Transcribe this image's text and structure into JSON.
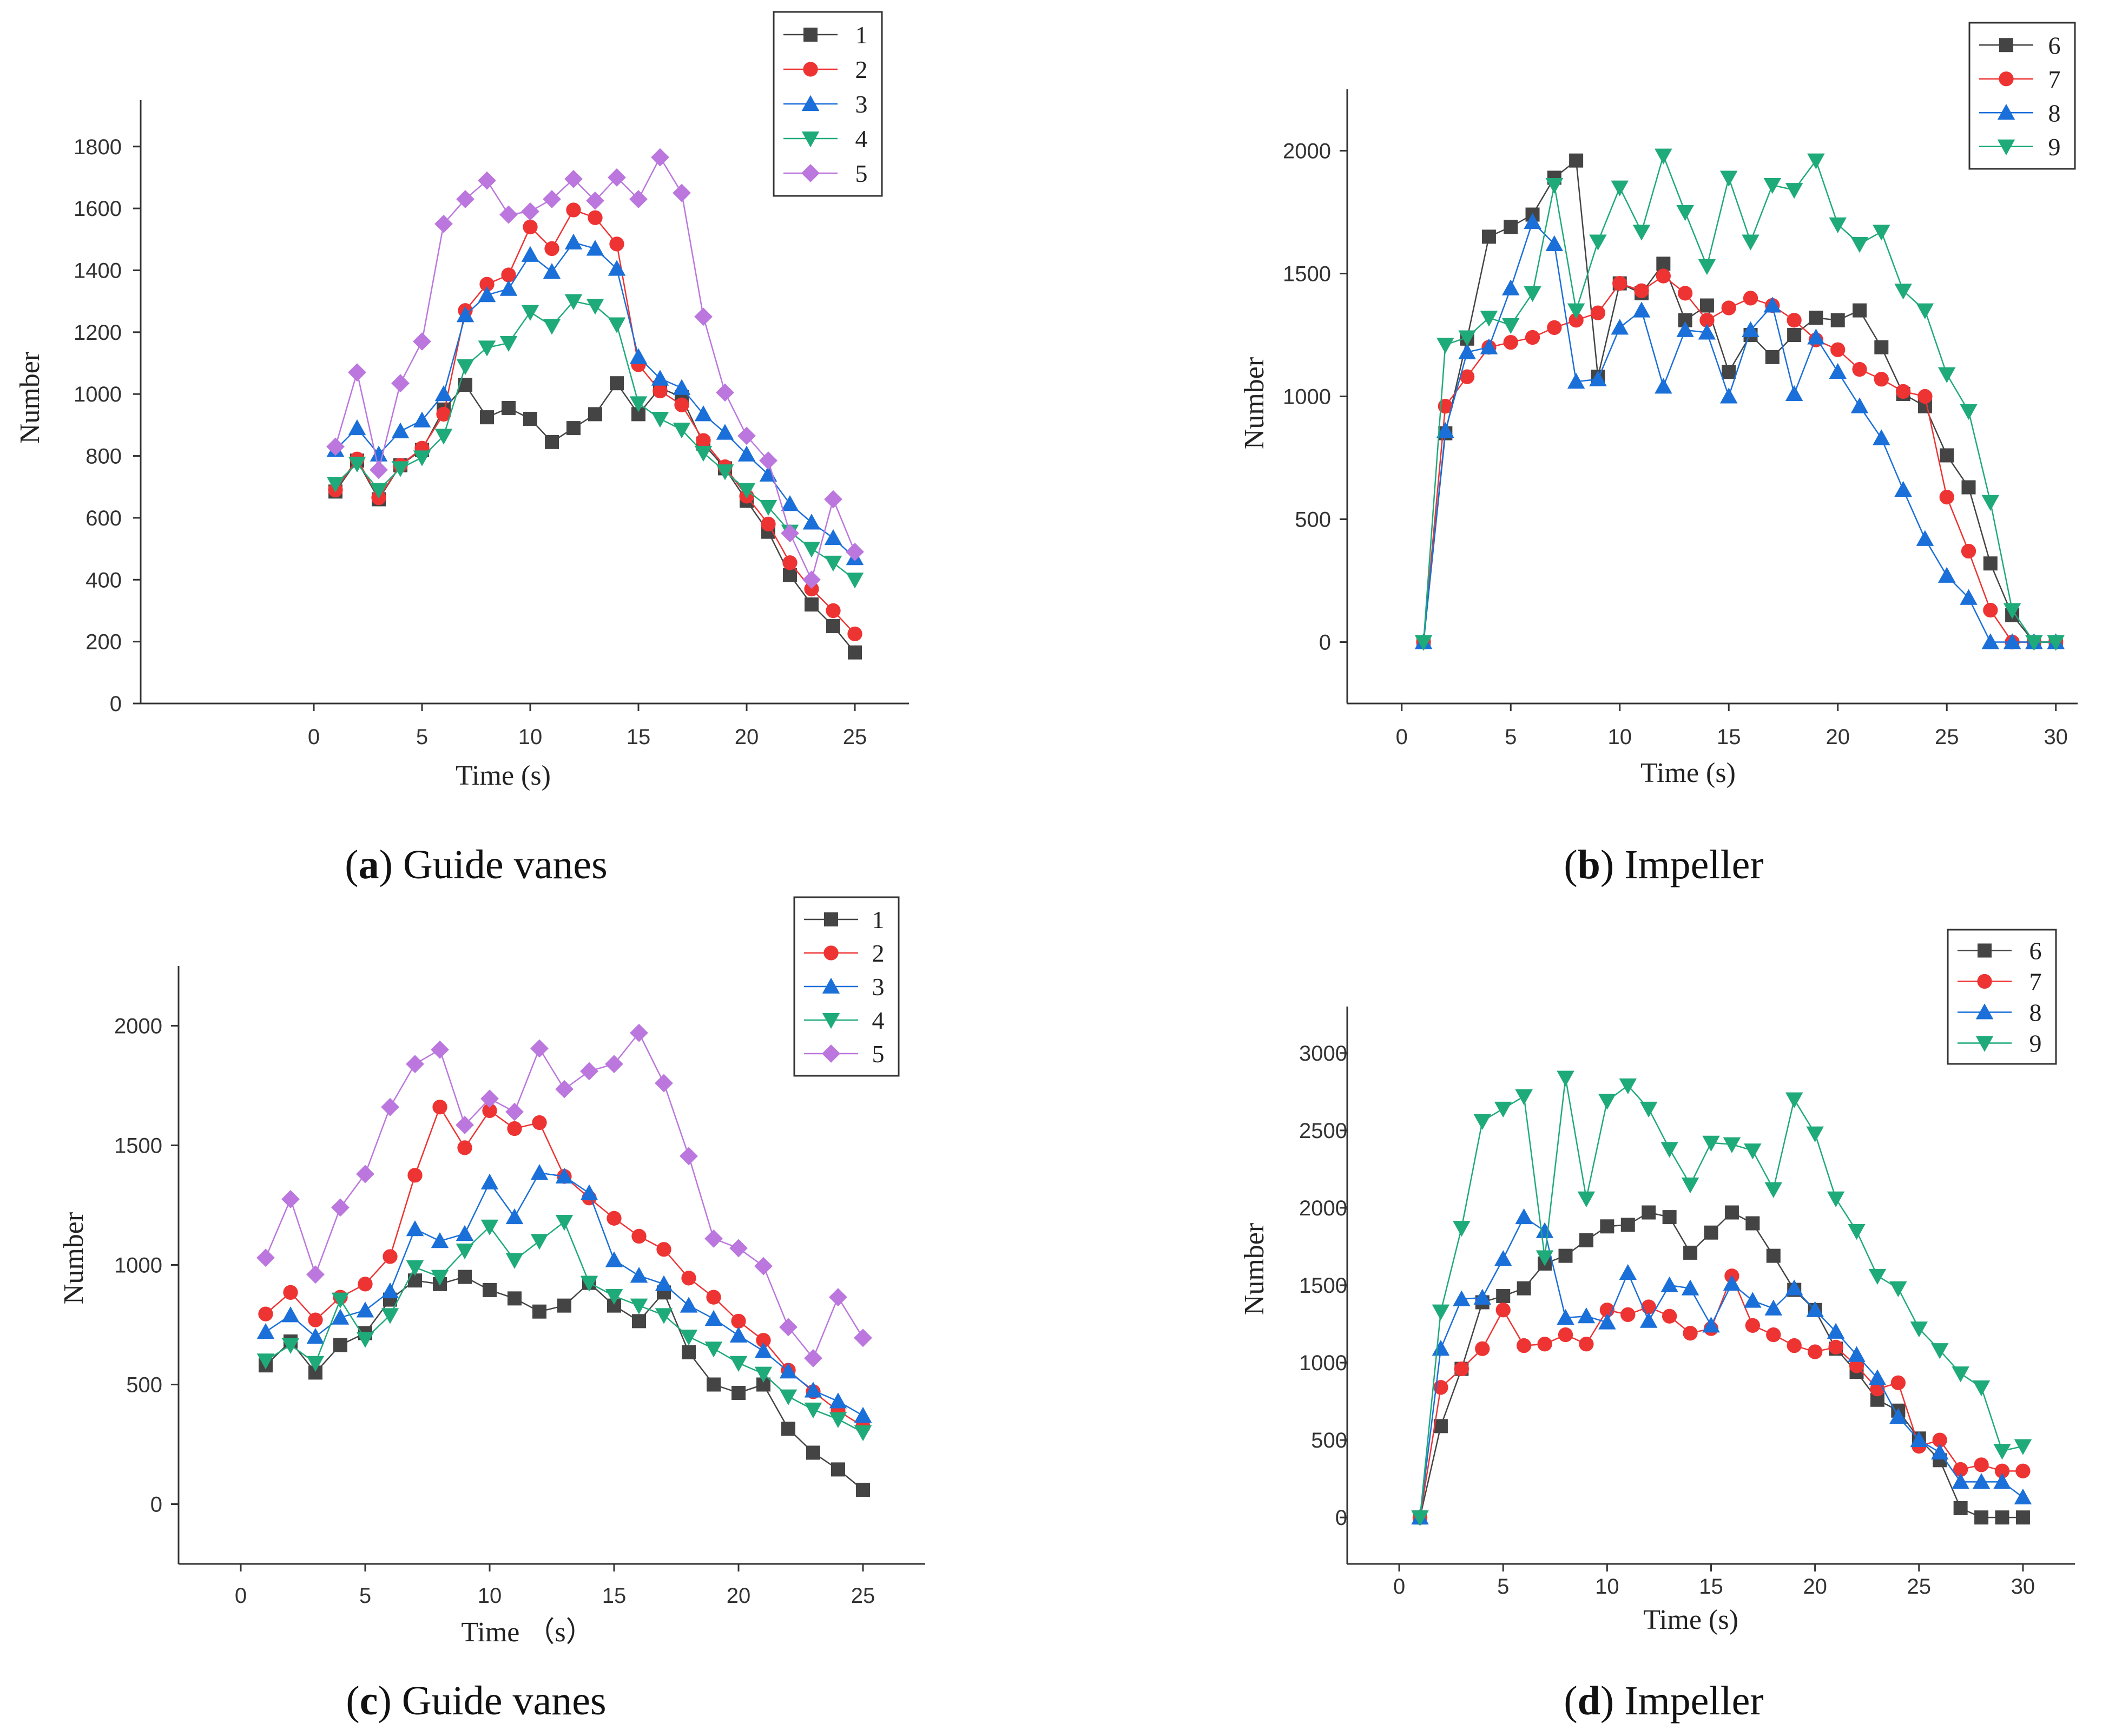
{
  "chart_data": [
    {
      "type": "line",
      "caption_letter": "a",
      "caption_text": "Guide vanes",
      "xlabel": "Time (s)",
      "ylabel": "Number",
      "xlim": [
        -8,
        27.5
      ],
      "ylim": [
        0,
        1950
      ],
      "xticks": [
        0,
        5,
        10,
        15,
        20,
        25
      ],
      "yticks": [
        0,
        200,
        400,
        600,
        800,
        1000,
        1200,
        1400,
        1600,
        1800
      ],
      "x": [
        1,
        2,
        3,
        4,
        5,
        6,
        7,
        8,
        9,
        10,
        11,
        12,
        13,
        14,
        15,
        16,
        17,
        18,
        19,
        20,
        21,
        22,
        23,
        24,
        25
      ],
      "series": [
        {
          "name": "1",
          "color": "#444444",
          "marker": "square",
          "values": [
            685,
            785,
            660,
            770,
            820,
            950,
            1030,
            925,
            955,
            920,
            845,
            890,
            935,
            1035,
            935,
            1020,
            990,
            840,
            760,
            655,
            555,
            415,
            320,
            250,
            165
          ]
        },
        {
          "name": "2",
          "color": "#ee3333",
          "marker": "circle",
          "values": [
            690,
            790,
            665,
            770,
            825,
            935,
            1270,
            1355,
            1385,
            1540,
            1470,
            1595,
            1570,
            1485,
            1095,
            1010,
            965,
            850,
            765,
            670,
            580,
            455,
            370,
            300,
            225
          ]
        },
        {
          "name": "3",
          "color": "#1a6fd9",
          "marker": "triangle-up",
          "values": [
            820,
            890,
            805,
            880,
            915,
            1000,
            1255,
            1320,
            1340,
            1450,
            1395,
            1490,
            1470,
            1405,
            1120,
            1050,
            1020,
            935,
            875,
            805,
            740,
            645,
            585,
            535,
            470
          ]
        },
        {
          "name": "4",
          "color": "#1faa7a",
          "marker": "triangle-down",
          "values": [
            710,
            775,
            690,
            760,
            795,
            865,
            1090,
            1150,
            1165,
            1265,
            1220,
            1300,
            1285,
            1225,
            970,
            920,
            885,
            810,
            750,
            690,
            635,
            555,
            500,
            455,
            400
          ]
        },
        {
          "name": "5",
          "color": "#bb77dd",
          "marker": "diamond",
          "values": [
            830,
            1070,
            755,
            1035,
            1170,
            1550,
            1630,
            1690,
            1580,
            1590,
            1630,
            1695,
            1625,
            1700,
            1630,
            1765,
            1650,
            1250,
            1005,
            865,
            785,
            550,
            400,
            660,
            490
          ]
        }
      ]
    },
    {
      "type": "line",
      "caption_letter": "b",
      "caption_text": "Impeller",
      "xlabel": "Time (s)",
      "ylabel": "Number",
      "xlim": [
        -2.5,
        31
      ],
      "ylim": [
        -250,
        2250
      ],
      "xticks": [
        0,
        5,
        10,
        15,
        20,
        25,
        30
      ],
      "yticks": [
        0,
        500,
        1000,
        1500,
        2000
      ],
      "x": [
        1,
        2,
        3,
        4,
        5,
        6,
        7,
        8,
        9,
        10,
        11,
        12,
        13,
        14,
        15,
        16,
        17,
        18,
        19,
        20,
        21,
        22,
        23,
        24,
        25,
        26,
        27,
        28,
        29,
        30
      ],
      "series": [
        {
          "name": "6",
          "color": "#444444",
          "marker": "square",
          "values": [
            0,
            850,
            1235,
            1650,
            1690,
            1740,
            1890,
            1960,
            1080,
            1460,
            1420,
            1540,
            1310,
            1370,
            1100,
            1250,
            1160,
            1250,
            1320,
            1310,
            1350,
            1200,
            1010,
            960,
            760,
            630,
            320,
            110,
            0,
            0
          ]
        },
        {
          "name": "7",
          "color": "#ee3333",
          "marker": "circle",
          "values": [
            0,
            960,
            1080,
            1200,
            1220,
            1240,
            1280,
            1310,
            1340,
            1460,
            1430,
            1490,
            1420,
            1310,
            1360,
            1400,
            1370,
            1310,
            1230,
            1190,
            1110,
            1070,
            1020,
            1000,
            590,
            370,
            130,
            0,
            0,
            0
          ]
        },
        {
          "name": "8",
          "color": "#1a6fd9",
          "marker": "triangle-up",
          "values": [
            0,
            860,
            1180,
            1200,
            1440,
            1710,
            1620,
            1060,
            1070,
            1280,
            1350,
            1040,
            1270,
            1260,
            1000,
            1270,
            1370,
            1010,
            1240,
            1100,
            960,
            830,
            620,
            420,
            270,
            180,
            0,
            0,
            0,
            0
          ]
        },
        {
          "name": "9",
          "color": "#1faa7a",
          "marker": "triangle-down",
          "values": [
            0,
            1210,
            1240,
            1320,
            1290,
            1420,
            1860,
            1350,
            1630,
            1850,
            1670,
            1980,
            1750,
            1530,
            1890,
            1630,
            1860,
            1840,
            1960,
            1700,
            1620,
            1670,
            1430,
            1350,
            1090,
            940,
            570,
            130,
            0,
            0
          ]
        }
      ]
    },
    {
      "type": "line",
      "caption_letter": "c",
      "caption_text": "Guide vanes",
      "xlabel": "Time （s）",
      "ylabel": "Number",
      "xlim": [
        -2.5,
        27.5
      ],
      "ylim": [
        -250,
        2250
      ],
      "xticks": [
        0,
        5,
        10,
        15,
        20,
        25
      ],
      "yticks": [
        0,
        500,
        1000,
        1500,
        2000
      ],
      "x": [
        1,
        2,
        3,
        4,
        5,
        6,
        7,
        8,
        9,
        10,
        11,
        12,
        13,
        14,
        15,
        16,
        17,
        18,
        19,
        20,
        21,
        22,
        23,
        24,
        25
      ],
      "series": [
        {
          "name": "1",
          "color": "#444444",
          "marker": "square",
          "values": [
            580,
            680,
            550,
            665,
            715,
            855,
            935,
            920,
            950,
            895,
            860,
            805,
            830,
            925,
            830,
            765,
            885,
            635,
            500,
            465,
            500,
            315,
            215,
            145,
            60
          ]
        },
        {
          "name": "2",
          "color": "#ee3333",
          "marker": "circle",
          "values": [
            795,
            885,
            770,
            865,
            920,
            1035,
            1375,
            1660,
            1490,
            1645,
            1570,
            1595,
            1370,
            1280,
            1195,
            1120,
            1065,
            945,
            865,
            765,
            685,
            560,
            470,
            390,
            325
          ]
        },
        {
          "name": "3",
          "color": "#1a6fd9",
          "marker": "triangle-up",
          "values": [
            720,
            790,
            700,
            780,
            810,
            890,
            1150,
            1100,
            1130,
            1345,
            1200,
            1385,
            1370,
            1300,
            1020,
            955,
            920,
            830,
            775,
            705,
            640,
            555,
            475,
            430,
            370
          ]
        },
        {
          "name": "4",
          "color": "#1faa7a",
          "marker": "triangle-down",
          "values": [
            600,
            665,
            590,
            855,
            690,
            790,
            990,
            950,
            1060,
            1160,
            1020,
            1100,
            1180,
            925,
            870,
            830,
            790,
            700,
            650,
            590,
            545,
            450,
            395,
            355,
            300
          ]
        },
        {
          "name": "5",
          "color": "#bb77dd",
          "marker": "diamond",
          "values": [
            1030,
            1275,
            960,
            1240,
            1380,
            1660,
            1840,
            1900,
            1585,
            1695,
            1640,
            1905,
            1735,
            1810,
            1840,
            1970,
            1760,
            1455,
            1110,
            1070,
            995,
            740,
            610,
            865,
            695
          ]
        }
      ]
    },
    {
      "type": "line",
      "caption_letter": "d",
      "caption_text": "Impeller",
      "xlabel": "Time (s)",
      "ylabel": "Number",
      "xlim": [
        -2.5,
        32.5
      ],
      "ylim": [
        -300,
        3300
      ],
      "xticks": [
        0,
        5,
        10,
        15,
        20,
        25,
        30
      ],
      "yticks": [
        0,
        500,
        1000,
        1500,
        2000,
        2500,
        3000
      ],
      "x": [
        1,
        2,
        3,
        4,
        5,
        6,
        7,
        8,
        9,
        10,
        11,
        12,
        13,
        14,
        15,
        16,
        17,
        18,
        19,
        20,
        21,
        22,
        23,
        24,
        25,
        26,
        27,
        28,
        29,
        30
      ],
      "series": [
        {
          "name": "6",
          "color": "#444444",
          "marker": "square",
          "values": [
            0,
            590,
            960,
            1390,
            1430,
            1480,
            1640,
            1690,
            1790,
            1880,
            1890,
            1970,
            1940,
            1710,
            1840,
            1970,
            1900,
            1690,
            1470,
            1340,
            1090,
            940,
            760,
            690,
            510,
            370,
            60,
            0,
            0,
            0
          ]
        },
        {
          "name": "7",
          "color": "#ee3333",
          "marker": "circle",
          "values": [
            0,
            840,
            960,
            1090,
            1340,
            1110,
            1120,
            1180,
            1120,
            1340,
            1310,
            1360,
            1300,
            1190,
            1220,
            1560,
            1240,
            1180,
            1110,
            1070,
            1100,
            980,
            830,
            870,
            460,
            500,
            310,
            340,
            300,
            300
          ]
        },
        {
          "name": "8",
          "color": "#1a6fd9",
          "marker": "triangle-up",
          "values": [
            0,
            1090,
            1410,
            1420,
            1670,
            1940,
            1850,
            1290,
            1300,
            1260,
            1580,
            1270,
            1500,
            1480,
            1240,
            1510,
            1400,
            1350,
            1480,
            1340,
            1200,
            1050,
            900,
            650,
            500,
            420,
            230,
            230,
            230,
            130
          ]
        },
        {
          "name": "9",
          "color": "#1faa7a",
          "marker": "triangle-down",
          "values": [
            0,
            1330,
            1870,
            2560,
            2640,
            2720,
            1680,
            2840,
            2060,
            2690,
            2790,
            2640,
            2380,
            2150,
            2420,
            2410,
            2370,
            2120,
            2700,
            2480,
            2060,
            1850,
            1560,
            1480,
            1220,
            1080,
            930,
            840,
            430,
            460
          ]
        }
      ]
    }
  ]
}
